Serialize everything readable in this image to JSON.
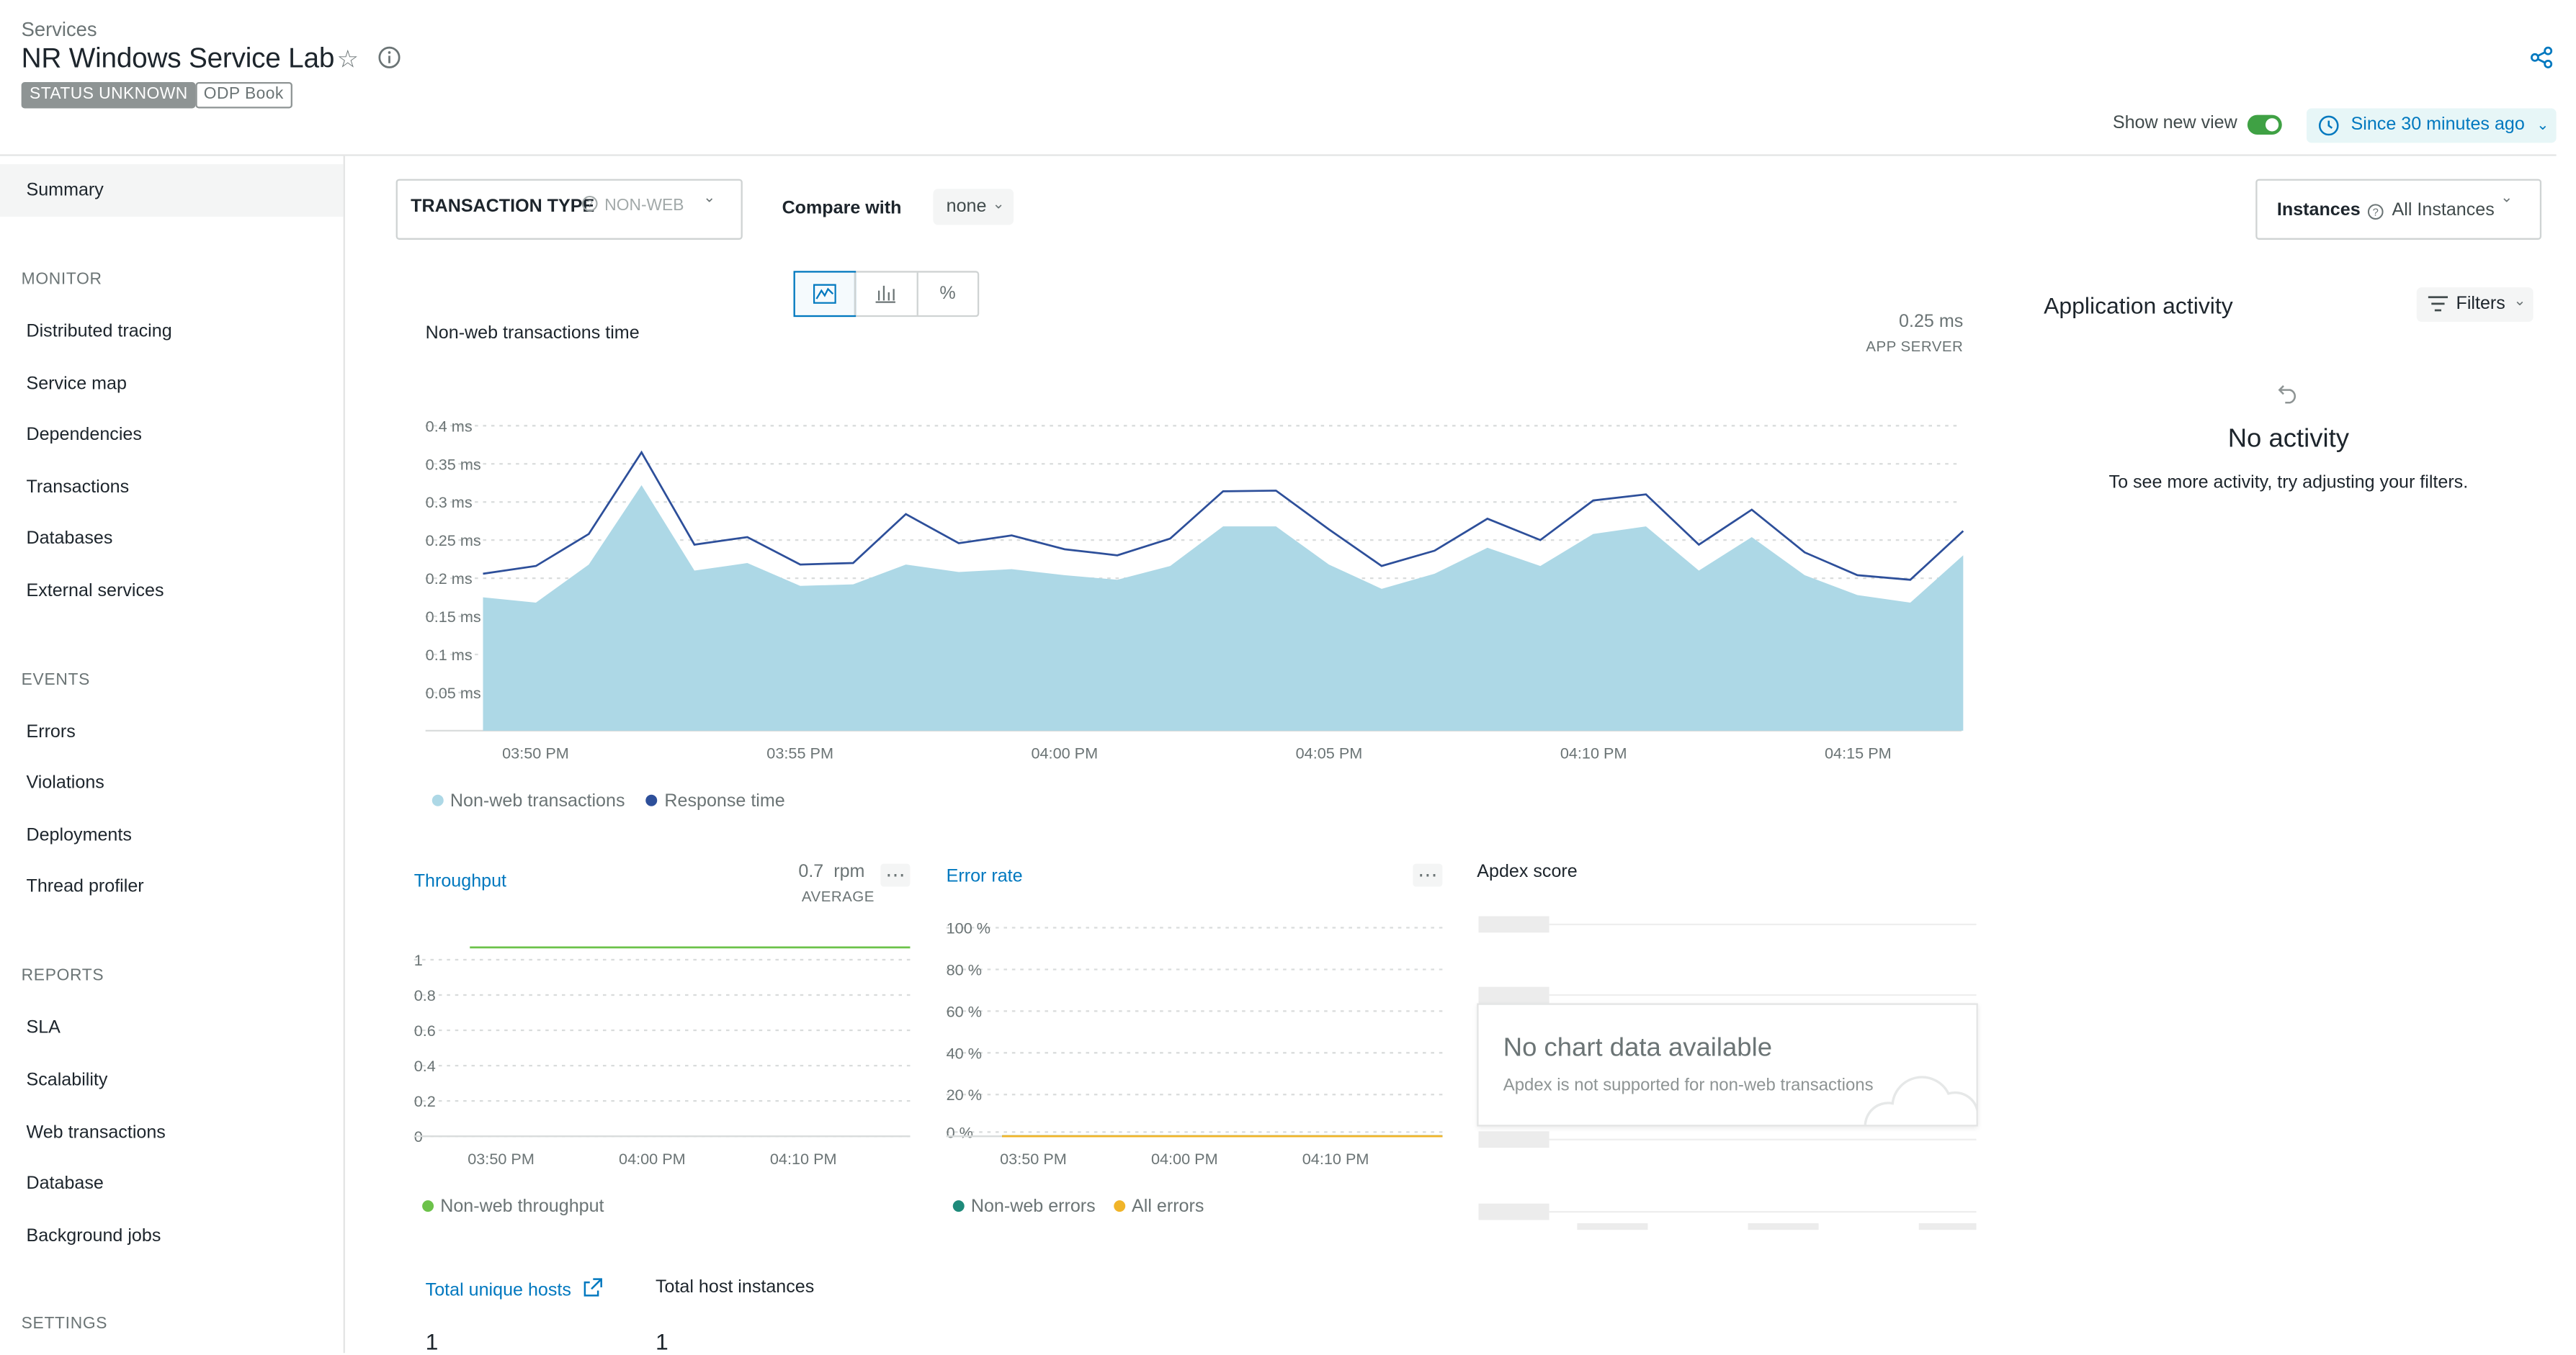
{
  "header": {
    "breadcrumb": "Services",
    "title": "NR Windows Service Lab",
    "status_badge": "STATUS UNKNOWN",
    "tag": "ODP Book",
    "show_new_view": "Show new view",
    "time_range": "Since 30 minutes ago"
  },
  "sidebar": {
    "summary": "Summary",
    "sections": [
      {
        "heading": "MONITOR",
        "items": [
          "Distributed tracing",
          "Service map",
          "Dependencies",
          "Transactions",
          "Databases",
          "External services"
        ]
      },
      {
        "heading": "EVENTS",
        "items": [
          "Errors",
          "Violations",
          "Deployments",
          "Thread profiler"
        ]
      },
      {
        "heading": "REPORTS",
        "items": [
          "SLA",
          "Scalability",
          "Web transactions",
          "Database",
          "Background jobs"
        ]
      },
      {
        "heading": "SETTINGS",
        "items": []
      }
    ]
  },
  "controls": {
    "transaction_type_label": "TRANSACTION TYPE",
    "transaction_type_value": "NON-WEB",
    "compare_label": "Compare with",
    "compare_value": "none",
    "instances_label": "Instances",
    "instances_value": "All Instances",
    "view_buttons": [
      "line-chart-icon",
      "bar-chart-icon",
      "%"
    ]
  },
  "main_chart": {
    "title": "Non-web transactions time",
    "summary_value": "0.25 ms",
    "summary_label": "APP SERVER",
    "legend": [
      "Non-web transactions",
      "Response time"
    ]
  },
  "chart_data": [
    {
      "type": "area",
      "title": "Non-web transactions time",
      "y_ticks": [
        "0.4 ms",
        "0.35 ms",
        "0.3 ms",
        "0.25 ms",
        "0.2 ms",
        "0.15 ms",
        "0.1 ms",
        "0.05 ms"
      ],
      "ylim": [
        0,
        0.42
      ],
      "x_ticks": [
        "03:50 PM",
        "03:55 PM",
        "04:00 PM",
        "04:05 PM",
        "04:10 PM",
        "04:15 PM"
      ],
      "series": [
        {
          "name": "Non-web transactions",
          "color": "#add8e6",
          "values": [
            0.175,
            0.168,
            0.218,
            0.322,
            0.21,
            0.22,
            0.19,
            0.192,
            0.218,
            0.208,
            0.212,
            0.204,
            0.198,
            0.216,
            0.268,
            0.268,
            0.218,
            0.186,
            0.206,
            0.24,
            0.216,
            0.258,
            0.268,
            0.21,
            0.254,
            0.204,
            0.178,
            0.168,
            0.23
          ]
        },
        {
          "name": "Response time",
          "color": "#2d4f9a",
          "values": [
            0.206,
            0.216,
            0.258,
            0.365,
            0.244,
            0.254,
            0.218,
            0.22,
            0.284,
            0.246,
            0.256,
            0.238,
            0.23,
            0.252,
            0.314,
            0.315,
            0.264,
            0.216,
            0.236,
            0.278,
            0.25,
            0.302,
            0.31,
            0.244,
            0.29,
            0.234,
            0.204,
            0.198,
            0.262
          ]
        }
      ]
    },
    {
      "type": "line",
      "title": "Throughput",
      "y_ticks": [
        "1",
        "0.8",
        "0.6",
        "0.4",
        "0.2",
        "0"
      ],
      "ylim": [
        0,
        1
      ],
      "x_ticks": [
        "03:50 PM",
        "04:00 PM",
        "04:10 PM"
      ],
      "series": [
        {
          "name": "Non-web throughput",
          "color": "#6cc24a",
          "values": [
            1,
            1
          ]
        }
      ]
    },
    {
      "type": "line",
      "title": "Error rate",
      "y_ticks": [
        "100 %",
        "80 %",
        "60 %",
        "40 %",
        "20 %",
        "0 %"
      ],
      "ylim": [
        0,
        100
      ],
      "x_ticks": [
        "03:50 PM",
        "04:00 PM",
        "04:10 PM"
      ],
      "series": [
        {
          "name": "Non-web errors",
          "color": "#1e8a7a",
          "values": [
            0,
            0
          ]
        },
        {
          "name": "All errors",
          "color": "#f0b429",
          "values": [
            0,
            0
          ]
        }
      ]
    }
  ],
  "throughput": {
    "title": "Throughput",
    "value": "0.7",
    "unit": "rpm",
    "label": "AVERAGE",
    "legend": "Non-web throughput"
  },
  "error_rate": {
    "title": "Error rate",
    "legend": [
      "Non-web errors",
      "All errors"
    ]
  },
  "apdex": {
    "title": "Apdex score",
    "empty_title": "No chart data available",
    "empty_text": "Apdex is not supported for non-web transactions"
  },
  "activity": {
    "title": "Application activity",
    "filters": "Filters",
    "empty_title": "No activity",
    "empty_text": "To see more activity, try adjusting your filters."
  },
  "hosts": {
    "unique_label": "Total unique hosts",
    "unique_value": "1",
    "instances_label": "Total host instances",
    "instances_value": "1"
  }
}
